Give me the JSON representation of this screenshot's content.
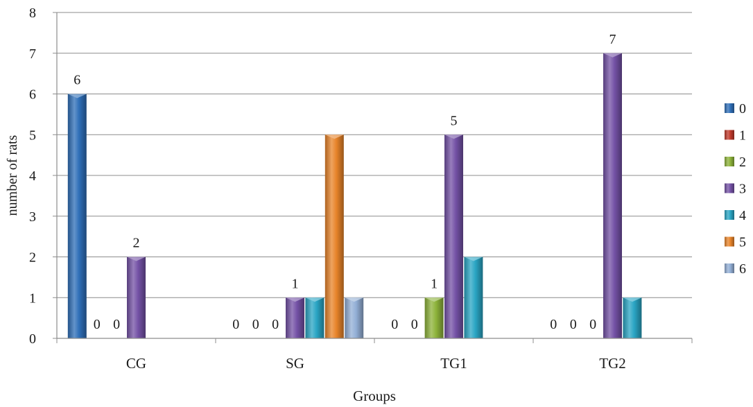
{
  "chart_data": {
    "type": "bar",
    "xlabel": "Groups",
    "ylabel": "number of rats",
    "ylim": [
      0,
      8
    ],
    "yticks": [
      0,
      1,
      2,
      3,
      4,
      5,
      6,
      7,
      8
    ],
    "grid": true,
    "legend_position": "right",
    "categories": [
      "CG",
      "SG",
      "TG1",
      "TG2"
    ],
    "series": [
      {
        "name": "0",
        "color": "#2f6fb8",
        "values": [
          6,
          0,
          0,
          0
        ]
      },
      {
        "name": "1",
        "color": "#c0392b",
        "values": [
          0,
          0,
          0,
          0
        ]
      },
      {
        "name": "2",
        "color": "#8db33a",
        "values": [
          0,
          0,
          1,
          0
        ]
      },
      {
        "name": "3",
        "color": "#7452a6",
        "values": [
          2,
          1,
          5,
          7
        ]
      },
      {
        "name": "4",
        "color": "#2aa5c4",
        "values": [
          0,
          1,
          2,
          1
        ]
      },
      {
        "name": "5",
        "color": "#e8842a",
        "values": [
          0,
          5,
          0,
          0
        ]
      },
      {
        "name": "6",
        "color": "#93afd6",
        "values": [
          0,
          1,
          0,
          0
        ]
      }
    ],
    "data_labels": [
      {
        "category": "CG",
        "series": "0",
        "text": "6"
      },
      {
        "category": "CG",
        "series": "1",
        "text": "0"
      },
      {
        "category": "CG",
        "series": "2",
        "text": "0"
      },
      {
        "category": "CG",
        "series": "3",
        "text": "2"
      },
      {
        "category": "SG",
        "series": "0",
        "text": "0"
      },
      {
        "category": "SG",
        "series": "1",
        "text": "0"
      },
      {
        "category": "SG",
        "series": "2",
        "text": "0"
      },
      {
        "category": "SG",
        "series": "3",
        "text": "1"
      },
      {
        "category": "TG1",
        "series": "0",
        "text": "0"
      },
      {
        "category": "TG1",
        "series": "1",
        "text": "0"
      },
      {
        "category": "TG1",
        "series": "2",
        "text": "1"
      },
      {
        "category": "TG1",
        "series": "3",
        "text": "5"
      },
      {
        "category": "TG2",
        "series": "0",
        "text": "0"
      },
      {
        "category": "TG2",
        "series": "1",
        "text": "0"
      },
      {
        "category": "TG2",
        "series": "2",
        "text": "0"
      },
      {
        "category": "TG2",
        "series": "3",
        "text": "7"
      }
    ]
  }
}
